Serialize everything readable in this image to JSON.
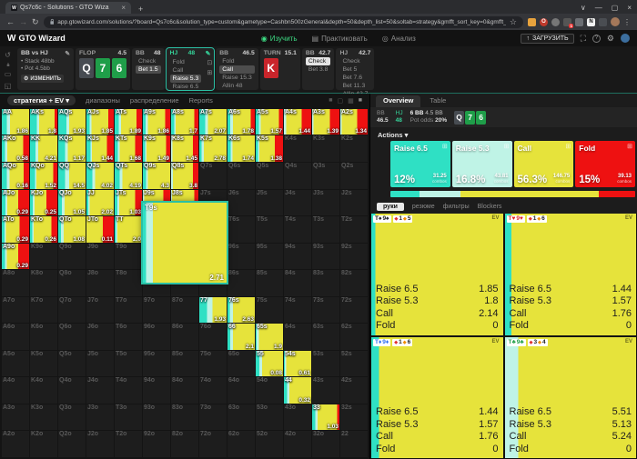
{
  "browser": {
    "tab_title": "Qs7c6c - Solutions - GTO Wiza",
    "url": "app.gtowizard.com/solutions/?board=Qs7c6c&solution_type=custom&gametype=Cashbn500zGeneral&depth=50&depth_list=50&soltab=strategy&gmfft_sort_key=0&gmfft_sort_order=desc&custree_id=59be860e-3e62..."
  },
  "header": {
    "brand": "GTO Wizard",
    "nav": [
      {
        "label": "Изучить",
        "active": true
      },
      {
        "label": "Практиковать",
        "active": false
      },
      {
        "label": "Анализ",
        "active": false
      }
    ],
    "upload_label": "ЗАГРУЗИТЬ"
  },
  "gamebar": {
    "players_panel": {
      "title": "BB vs HJ",
      "bullets": [
        "Stack 48bb",
        "Pot 4.5bb"
      ],
      "edit_label": "ИЗМЕНИТЬ"
    },
    "nodes": [
      {
        "type": "street",
        "label": "FLOP",
        "pot": "4.5",
        "cards": [
          {
            "rank": "Q",
            "suit": "s"
          },
          {
            "rank": "7",
            "suit": "c"
          },
          {
            "rank": "6",
            "suit": "c"
          }
        ]
      },
      {
        "type": "player",
        "player": "BB",
        "stack": "48",
        "actions": [
          {
            "label": "Check"
          },
          {
            "label": "Bet 1.5",
            "selected": true
          }
        ]
      },
      {
        "type": "player",
        "player": "HJ",
        "stack": "48",
        "active": true,
        "side_icons": true,
        "actions": [
          {
            "label": "Fold"
          },
          {
            "label": "Call"
          },
          {
            "label": "Raise 5.3",
            "selected": true
          },
          {
            "label": "Raise 6.5"
          }
        ]
      },
      {
        "type": "player",
        "player": "BB",
        "stack": "46.5",
        "actions": [
          {
            "label": "Fold"
          },
          {
            "label": "Call",
            "selected": true
          },
          {
            "label": "Raise 15.3"
          },
          {
            "label": "Allin 48"
          }
        ]
      },
      {
        "type": "street",
        "label": "TURN",
        "pot": "15.1",
        "cards": [
          {
            "rank": "K",
            "suit": "h"
          }
        ]
      },
      {
        "type": "player",
        "player": "BB",
        "stack": "42.7",
        "actions": [
          {
            "label": "Check",
            "selected": true,
            "light": true
          },
          {
            "label": "Bet 3.8"
          }
        ]
      },
      {
        "type": "player",
        "player": "HJ",
        "stack": "42.7",
        "actions": [
          {
            "label": "Check"
          },
          {
            "label": "Bet 5"
          },
          {
            "label": "Bet 7.6"
          },
          {
            "label": "Bet 11.3"
          },
          {
            "label": "Allin 42.7"
          }
        ]
      }
    ]
  },
  "matrix": {
    "tabs": [
      {
        "label": "стратегия + EV",
        "active": true,
        "caret": true
      },
      {
        "label": "диапазоны"
      },
      {
        "label": "распределение"
      },
      {
        "label": "Reports"
      }
    ],
    "overlay": {
      "hand": "T9s",
      "ev": "2.71",
      "strategy": [
        4,
        8,
        88,
        0
      ]
    },
    "cells": [
      [
        "AA",
        "1.86",
        [
          18,
          12,
          70,
          0
        ]
      ],
      [
        "AKs",
        "1.8",
        [
          25,
          8,
          57,
          10
        ]
      ],
      [
        "AQs",
        "1.93",
        [
          30,
          10,
          60,
          0
        ]
      ],
      [
        "AJs",
        "1.85",
        [
          12,
          6,
          62,
          20
        ]
      ],
      [
        "ATs",
        "1.89",
        [
          15,
          8,
          57,
          20
        ]
      ],
      [
        "A9s",
        "1.86",
        [
          10,
          8,
          64,
          18
        ]
      ],
      [
        "A8s",
        "1.7",
        [
          12,
          5,
          68,
          15
        ]
      ],
      [
        "A7s",
        "2.07",
        [
          22,
          10,
          68,
          0
        ]
      ],
      [
        "A6s",
        "1.78",
        [
          10,
          10,
          65,
          15
        ]
      ],
      [
        "A5s",
        "1.57",
        [
          12,
          6,
          67,
          15
        ]
      ],
      [
        "A4s",
        "1.44",
        [
          0,
          8,
          57,
          35
        ]
      ],
      [
        "A3s",
        "1.39",
        [
          0,
          5,
          60,
          35
        ]
      ],
      [
        "A2s",
        "1.34",
        [
          0,
          5,
          57,
          38
        ]
      ],
      [
        "AKo",
        "0.58",
        [
          12,
          8,
          58,
          22
        ]
      ],
      [
        "KK",
        "4.21",
        [
          20,
          10,
          70,
          0
        ]
      ],
      [
        "KQs",
        "1.17",
        [
          25,
          10,
          65,
          0
        ]
      ],
      [
        "KJs",
        "1.44",
        [
          15,
          5,
          55,
          25
        ]
      ],
      [
        "KTs",
        "1.68",
        [
          12,
          6,
          57,
          25
        ]
      ],
      [
        "K9s",
        "1.49",
        [
          8,
          5,
          72,
          15
        ]
      ],
      [
        "K8s",
        "1.45",
        [
          0,
          5,
          75,
          20
        ]
      ],
      [
        "K7s",
        "2.78",
        [
          8,
          8,
          84,
          0
        ]
      ],
      [
        "K6s",
        "1.74",
        [
          12,
          6,
          82,
          0
        ]
      ],
      [
        "K5s",
        "1.38",
        [
          8,
          5,
          57,
          30
        ]
      ],
      [
        "K4s"
      ],
      [
        "K3s"
      ],
      [
        "K2s"
      ],
      [
        "AQo",
        "0.16",
        [
          18,
          10,
          52,
          20
        ]
      ],
      [
        "KQo",
        "1.52",
        [
          18,
          6,
          61,
          15
        ]
      ],
      [
        "QQ",
        "14.5",
        [
          25,
          15,
          60,
          0
        ]
      ],
      [
        "QJs",
        "4.02",
        [
          22,
          10,
          68,
          0
        ]
      ],
      [
        "QTs",
        "4.19",
        [
          18,
          10,
          72,
          0
        ]
      ],
      [
        "Q9s",
        "4.3",
        [
          12,
          6,
          82,
          0
        ]
      ],
      [
        "Q8s",
        "3.8",
        [
          0,
          6,
          74,
          20
        ]
      ],
      [
        "Q7s"
      ],
      [
        "Q6s"
      ],
      [
        "Q5s"
      ],
      [
        "Q4s"
      ],
      [
        "Q3s"
      ],
      [
        "Q2s"
      ],
      [
        "AJo",
        "0.29",
        [
          14,
          6,
          40,
          40
        ]
      ],
      [
        "KJo",
        "0.25",
        [
          10,
          6,
          44,
          40
        ]
      ],
      [
        "QJo",
        "1.05",
        [
          14,
          10,
          76,
          0
        ]
      ],
      [
        "JJ",
        "2.02",
        [
          6,
          6,
          88,
          0
        ]
      ],
      [
        "JTs",
        "1.03",
        [
          10,
          6,
          59,
          25
        ]
      ],
      [
        "J9s",
        "1.02",
        [
          0,
          5,
          70,
          25
        ]
      ],
      [
        "J8s",
        "1",
        [
          0,
          4,
          81,
          15
        ]
      ],
      [
        "J7s"
      ],
      [
        "J6s"
      ],
      [
        "J5s"
      ],
      [
        "J4s"
      ],
      [
        "J3s"
      ],
      [
        "J2s"
      ],
      [
        "ATo",
        "0.29",
        [
          10,
          5,
          50,
          35
        ]
      ],
      [
        "KTo",
        "0.26",
        [
          8,
          5,
          65,
          22
        ]
      ],
      [
        "QTo",
        "1.08",
        [
          10,
          10,
          80,
          0
        ]
      ],
      [
        "JTo",
        "0.11",
        [
          0,
          0,
          60,
          40
        ]
      ],
      [
        "TT",
        "2.0",
        [
          5,
          5,
          90,
          0
        ]
      ],
      [
        "T9s"
      ],
      [
        "T8s"
      ],
      [
        "T7s"
      ],
      [
        "T6s"
      ],
      [
        "T5s"
      ],
      [
        "T4s"
      ],
      [
        "T3s"
      ],
      [
        "T2s"
      ],
      [
        "A9o",
        "0.29",
        [
          12,
          6,
          42,
          40
        ]
      ],
      [
        "K9o"
      ],
      [
        "Q9o"
      ],
      [
        "J9o"
      ],
      [
        "T9o"
      ],
      [
        "99"
      ],
      [
        "98s"
      ],
      [
        "97s"
      ],
      [
        "96s"
      ],
      [
        "95s"
      ],
      [
        "94s"
      ],
      [
        "93s"
      ],
      [
        "92s"
      ],
      [
        "A8o"
      ],
      [
        "K8o"
      ],
      [
        "Q8o"
      ],
      [
        "J8o"
      ],
      [
        "T8o"
      ],
      [
        "98o"
      ],
      [
        "88"
      ],
      [
        "87s"
      ],
      [
        "86s"
      ],
      [
        "85s"
      ],
      [
        "84s"
      ],
      [
        "83s"
      ],
      [
        "82s"
      ],
      [
        "A7o"
      ],
      [
        "K7o"
      ],
      [
        "Q7o"
      ],
      [
        "J7o"
      ],
      [
        "T7o"
      ],
      [
        "97o"
      ],
      [
        "87o"
      ],
      [
        "77",
        "1.93",
        [
          28,
          20,
          52,
          0
        ]
      ],
      [
        "76s",
        "2.63",
        [
          8,
          12,
          80,
          0
        ]
      ],
      [
        "75s"
      ],
      [
        "74s"
      ],
      [
        "73s"
      ],
      [
        "72s"
      ],
      [
        "A6o"
      ],
      [
        "K6o"
      ],
      [
        "Q6o"
      ],
      [
        "J6o"
      ],
      [
        "T6o"
      ],
      [
        "96o"
      ],
      [
        "86o"
      ],
      [
        "76o"
      ],
      [
        "66",
        "2.1",
        [
          10,
          10,
          80,
          0
        ]
      ],
      [
        "65s",
        "1.9",
        [
          3,
          8,
          89,
          0
        ]
      ],
      [
        "64s"
      ],
      [
        "63s"
      ],
      [
        "62s"
      ],
      [
        "A5o"
      ],
      [
        "K5o"
      ],
      [
        "Q5o"
      ],
      [
        "J5o"
      ],
      [
        "T5o"
      ],
      [
        "95o"
      ],
      [
        "85o"
      ],
      [
        "75o"
      ],
      [
        "65o"
      ],
      [
        "55",
        "0.08",
        [
          14,
          10,
          76,
          0
        ]
      ],
      [
        "54s",
        "0.61",
        [
          3,
          6,
          91,
          0
        ]
      ],
      [
        "53s"
      ],
      [
        "52s"
      ],
      [
        "A4o"
      ],
      [
        "K4o"
      ],
      [
        "Q4o"
      ],
      [
        "J4o"
      ],
      [
        "T4o"
      ],
      [
        "94o"
      ],
      [
        "84o"
      ],
      [
        "74o"
      ],
      [
        "64o"
      ],
      [
        "54o"
      ],
      [
        "44",
        "0.32",
        [
          12,
          8,
          80,
          0
        ]
      ],
      [
        "43s"
      ],
      [
        "42s"
      ],
      [
        "A3o"
      ],
      [
        "K3o"
      ],
      [
        "Q3o"
      ],
      [
        "J3o"
      ],
      [
        "T3o"
      ],
      [
        "93o"
      ],
      [
        "83o"
      ],
      [
        "73o"
      ],
      [
        "63o"
      ],
      [
        "53o"
      ],
      [
        "43o"
      ],
      [
        "33",
        "1.03",
        [
          12,
          8,
          72,
          8
        ]
      ],
      [
        "32s"
      ],
      [
        "A2o"
      ],
      [
        "K2o"
      ],
      [
        "Q2o"
      ],
      [
        "J2o"
      ],
      [
        "T2o"
      ],
      [
        "92o"
      ],
      [
        "82o"
      ],
      [
        "72o"
      ],
      [
        "62o"
      ],
      [
        "52o"
      ],
      [
        "42o"
      ],
      [
        "32o"
      ],
      [
        "22"
      ]
    ]
  },
  "right": {
    "tabs": [
      {
        "label": "Overview",
        "active": true
      },
      {
        "label": "Table"
      }
    ],
    "info": {
      "bb_label": "BB",
      "bb_stack": "46.5",
      "hj_label": "HJ",
      "hj_stack": "48",
      "pot": "6 BB",
      "pot_prev": "4.5 BB",
      "pot_odds_label": "Pot odds",
      "pot_odds": "20%",
      "board": [
        {
          "rank": "Q",
          "suit": "s"
        },
        {
          "rank": "7",
          "suit": "c"
        },
        {
          "rank": "6",
          "suit": "c"
        }
      ]
    },
    "actions_label": "Actions",
    "actions": [
      {
        "name": "Raise 6.5",
        "pct": "12%",
        "combos": "31.25",
        "combos_label": "combos",
        "color_key": "raise_65"
      },
      {
        "name": "Raise 5.3",
        "pct": "16.8%",
        "combos": "43.81",
        "combos_label": "combos",
        "color_key": "raise_53"
      },
      {
        "name": "Call",
        "pct": "56.3%",
        "combos": "146.75",
        "combos_label": "combos",
        "color_key": "call"
      },
      {
        "name": "Fold",
        "pct": "15%",
        "combos": "39.13",
        "combos_label": "combos",
        "color_key": "fold"
      }
    ],
    "bar_pcts": [
      12,
      16.8,
      56.3,
      15
    ],
    "hand_tabs": [
      {
        "label": "руки",
        "active": true
      },
      {
        "label": "резюме"
      },
      {
        "label": "фильтры"
      },
      {
        "label": "Blockers"
      }
    ],
    "ev_label": "EV",
    "action_row_labels": [
      "Raise 6.5",
      "Raise 5.3",
      "Call",
      "Fold"
    ],
    "hands": [
      {
        "cards": [
          {
            "rank": "T",
            "suit": "s"
          },
          {
            "rank": "9",
            "suit": "s"
          }
        ],
        "tags": [
          {
            "value": "1",
            "color": "#e03131"
          },
          {
            "value": "5",
            "color": "#f08c00"
          }
        ],
        "strategy": [
          3,
          0,
          97,
          0
        ],
        "evs": [
          "1.85",
          "1.8",
          "2.14",
          "0"
        ]
      },
      {
        "cards": [
          {
            "rank": "T",
            "suit": "h"
          },
          {
            "rank": "9",
            "suit": "h"
          }
        ],
        "tags": [
          {
            "value": "1",
            "color": "#e03131"
          },
          {
            "value": "6",
            "color": "#f08c00"
          }
        ],
        "strategy": [
          5,
          0,
          95,
          0
        ],
        "evs": [
          "1.44",
          "1.57",
          "1.76",
          "0"
        ]
      },
      {
        "cards": [
          {
            "rank": "T",
            "suit": "d"
          },
          {
            "rank": "9",
            "suit": "d"
          }
        ],
        "tags": [
          {
            "value": "1",
            "color": "#e03131"
          },
          {
            "value": "6",
            "color": "#f08c00"
          }
        ],
        "strategy": [
          6,
          0,
          94,
          0
        ],
        "evs": [
          "1.44",
          "1.57",
          "1.76",
          "0"
        ]
      },
      {
        "cards": [
          {
            "rank": "T",
            "suit": "c"
          },
          {
            "rank": "9",
            "suit": "c"
          }
        ],
        "tags": [
          {
            "value": "3",
            "color": "#e03131"
          },
          {
            "value": "4",
            "color": "#f08c00"
          }
        ],
        "strategy": [
          0,
          10,
          90,
          0
        ],
        "evs": [
          "5.51",
          "5.13",
          "5.24",
          "0"
        ]
      }
    ]
  },
  "colors": {
    "raise_65": "#2fe0c4",
    "raise_53": "#bff3e6",
    "call": "#e6e33b",
    "fold": "#ee1111",
    "accent": "#2bbfa4",
    "nav_active": "#3ddc84",
    "suit_bg": {
      "s": "#474c52",
      "h": "#c9252b",
      "d": "#2b6cf0",
      "c": "#1f9e49"
    },
    "suit_text": {
      "s": "#17181a",
      "h": "#e0262b",
      "d": "#2b6cf0",
      "c": "#1f9e46"
    }
  },
  "icons": {
    "suits": {
      "s": "♠",
      "h": "♥",
      "d": "♦",
      "c": "♣"
    },
    "edit": "✎",
    "gear": "⚙",
    "caret_down": "▾",
    "grid": "⊞",
    "lock": "⊡",
    "back": "←",
    "forward": "→",
    "refresh": "↻",
    "star": "☆",
    "minimize": "—",
    "maximize": "▢",
    "close": "×",
    "chevron": "∨",
    "study": "◉",
    "practice": "▤",
    "analyze": "◎",
    "upload": "↑",
    "fullscreen": "⛶",
    "help": "?",
    "history": "↺",
    "monitor": "▭",
    "hourglass": "◱",
    "view_modes": [
      "■",
      "▢",
      "▦",
      "■"
    ]
  }
}
